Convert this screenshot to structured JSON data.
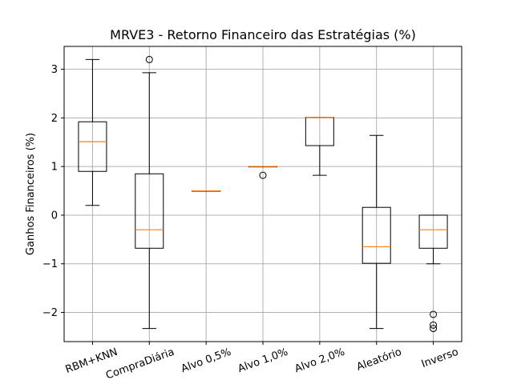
{
  "chart_data": {
    "type": "box",
    "title": "MRVE3 - Retorno Financeiro das Estratégias (%)",
    "xlabel": "",
    "ylabel": "Ganhos Financeiros (%)",
    "ylim": [
      -2.6,
      3.47
    ],
    "yticks": [
      -2,
      -1,
      0,
      1,
      2,
      3
    ],
    "ytick_labels": [
      "−2",
      "−1",
      "0",
      "1",
      "2",
      "3"
    ],
    "grid": true,
    "median_color": "#ff7f0e",
    "box_color": "#000000",
    "grid_color": "#b0b0b0",
    "categories": [
      "RBM+KNN",
      "CompraDiária",
      "Alvo 0,5%",
      "Alvo 1,0%",
      "Alvo 2,0%",
      "Aleatório",
      "Inverso"
    ],
    "boxes": [
      {
        "whisker_low": 0.2,
        "q1": 0.9,
        "median": 1.51,
        "q3": 1.92,
        "whisker_high": 3.2,
        "outliers": []
      },
      {
        "whisker_low": -2.33,
        "q1": -0.68,
        "median": -0.3,
        "q3": 0.85,
        "whisker_high": 2.93,
        "outliers": [
          3.2
        ]
      },
      {
        "whisker_low": 0.5,
        "q1": 0.5,
        "median": 0.5,
        "q3": 0.5,
        "whisker_high": 0.5,
        "outliers": []
      },
      {
        "whisker_low": 1.0,
        "q1": 1.0,
        "median": 1.0,
        "q3": 1.0,
        "whisker_high": 1.0,
        "outliers": [
          0.82
        ]
      },
      {
        "whisker_low": 0.82,
        "q1": 1.43,
        "median": 2.01,
        "q3": 2.01,
        "whisker_high": 2.01,
        "outliers": []
      },
      {
        "whisker_low": -2.33,
        "q1": -0.99,
        "median": -0.65,
        "q3": 0.16,
        "whisker_high": 1.64,
        "outliers": []
      },
      {
        "whisker_low": -1.0,
        "q1": -0.68,
        "median": -0.3,
        "q3": 0.0,
        "whisker_high": 0.0,
        "outliers": [
          -2.04,
          -2.26,
          -2.33
        ]
      }
    ]
  }
}
